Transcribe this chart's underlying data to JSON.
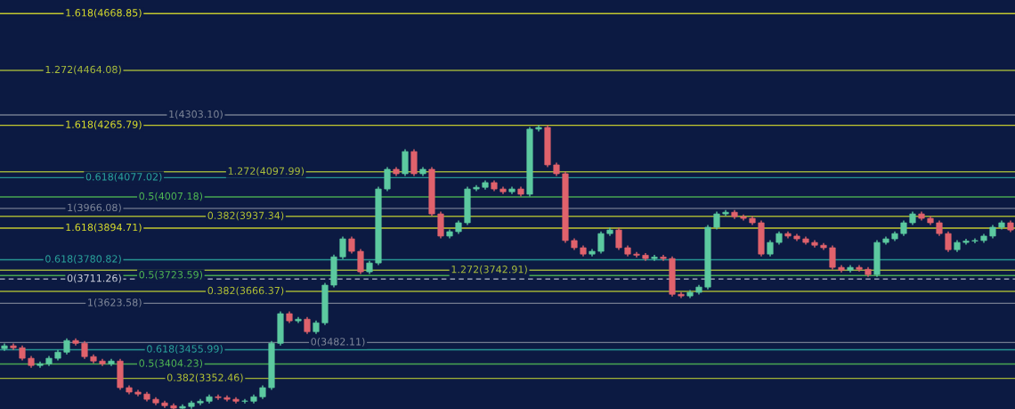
{
  "chart_data": {
    "type": "candlestick",
    "categories": [
      null,
      null,
      null,
      null,
      null,
      null,
      null,
      null,
      null,
      null,
      null,
      null,
      null,
      null,
      null,
      null,
      null,
      null,
      null,
      null,
      null,
      null,
      null,
      null,
      null,
      null,
      null,
      null,
      null,
      null,
      null,
      null,
      null,
      null,
      null,
      null,
      null,
      null,
      null,
      null,
      null,
      null,
      null,
      null,
      null,
      null,
      null,
      null,
      null,
      null,
      null,
      null,
      null,
      null,
      null,
      null,
      null,
      null,
      null,
      null,
      null,
      null,
      null,
      null,
      null,
      null,
      null,
      null,
      null,
      null,
      null,
      null,
      null,
      null,
      null,
      null,
      null,
      null,
      null,
      null,
      null,
      null,
      null,
      null,
      null,
      null,
      null,
      null,
      null,
      null,
      null,
      null,
      null,
      null,
      null,
      null,
      null,
      null,
      null,
      null,
      null,
      null,
      null,
      null,
      null,
      null,
      null,
      null,
      null,
      null,
      null,
      null,
      null,
      null
    ],
    "ohlc": [
      [
        3460,
        3478,
        3452,
        3470
      ],
      [
        3470,
        3478,
        3455,
        3463
      ],
      [
        3463,
        3471,
        3417,
        3425
      ],
      [
        3425,
        3433,
        3391,
        3399
      ],
      [
        3399,
        3413,
        3391,
        3405
      ],
      [
        3405,
        3433,
        3397,
        3425
      ],
      [
        3425,
        3455,
        3417,
        3447
      ],
      [
        3447,
        3497,
        3439,
        3489
      ],
      [
        3489,
        3497,
        3471,
        3479
      ],
      [
        3479,
        3487,
        3423,
        3431
      ],
      [
        3431,
        3439,
        3407,
        3415
      ],
      [
        3415,
        3423,
        3397,
        3405
      ],
      [
        3405,
        3423,
        3397,
        3415
      ],
      [
        3415,
        3423,
        3311,
        3319
      ],
      [
        3319,
        3327,
        3295,
        3303
      ],
      [
        3303,
        3311,
        3288,
        3296
      ],
      [
        3296,
        3304,
        3269,
        3277
      ],
      [
        3277,
        3285,
        3256,
        3264
      ],
      [
        3264,
        3272,
        3246,
        3254
      ],
      [
        3254,
        3262,
        3242,
        3245
      ],
      [
        3245,
        3259,
        3243,
        3251
      ],
      [
        3251,
        3272,
        3243,
        3264
      ],
      [
        3264,
        3278,
        3256,
        3270
      ],
      [
        3270,
        3294,
        3262,
        3286
      ],
      [
        3286,
        3294,
        3275,
        3283
      ],
      [
        3283,
        3291,
        3269,
        3277
      ],
      [
        3277,
        3285,
        3262,
        3270
      ],
      [
        3270,
        3278,
        3262,
        3270
      ],
      [
        3270,
        3294,
        3262,
        3286
      ],
      [
        3286,
        3327,
        3278,
        3319
      ],
      [
        3319,
        3487,
        3311,
        3479
      ],
      [
        3479,
        3594,
        3471,
        3586
      ],
      [
        3586,
        3594,
        3552,
        3560
      ],
      [
        3560,
        3574,
        3552,
        3566
      ],
      [
        3566,
        3574,
        3513,
        3521
      ],
      [
        3521,
        3561,
        3513,
        3553
      ],
      [
        3553,
        3697,
        3545,
        3689
      ],
      [
        3689,
        3799,
        3681,
        3791
      ],
      [
        3791,
        3864,
        3783,
        3856
      ],
      [
        3856,
        3864,
        3803,
        3811
      ],
      [
        3811,
        3819,
        3729,
        3737
      ],
      [
        3737,
        3777,
        3729,
        3769
      ],
      [
        3769,
        4044,
        3761,
        4036
      ],
      [
        4036,
        4115,
        4028,
        4107
      ],
      [
        4107,
        4115,
        4083,
        4091
      ],
      [
        4091,
        4179,
        4083,
        4171
      ],
      [
        4171,
        4179,
        4083,
        4091
      ],
      [
        4091,
        4115,
        4083,
        4107
      ],
      [
        4107,
        4115,
        3938,
        3946
      ],
      [
        3946,
        3954,
        3858,
        3866
      ],
      [
        3866,
        3890,
        3858,
        3882
      ],
      [
        3882,
        3922,
        3874,
        3914
      ],
      [
        3914,
        4044,
        3906,
        4036
      ],
      [
        4036,
        4050,
        4028,
        4042
      ],
      [
        4042,
        4067,
        4034,
        4059
      ],
      [
        4059,
        4067,
        4028,
        4036
      ],
      [
        4036,
        4044,
        4018,
        4026
      ],
      [
        4026,
        4044,
        4018,
        4036
      ],
      [
        4036,
        4044,
        4009,
        4017
      ],
      [
        4017,
        4260,
        4009,
        4252
      ],
      [
        4252,
        4266,
        4244,
        4258
      ],
      [
        4258,
        4266,
        4115,
        4123
      ],
      [
        4123,
        4131,
        4083,
        4091
      ],
      [
        4091,
        4099,
        3842,
        3850
      ],
      [
        3850,
        3858,
        3816,
        3824
      ],
      [
        3824,
        3832,
        3793,
        3801
      ],
      [
        3801,
        3819,
        3793,
        3811
      ],
      [
        3811,
        3883,
        3803,
        3875
      ],
      [
        3875,
        3896,
        3867,
        3888
      ],
      [
        3888,
        3896,
        3816,
        3824
      ],
      [
        3824,
        3832,
        3793,
        3801
      ],
      [
        3801,
        3809,
        3789,
        3797
      ],
      [
        3797,
        3805,
        3777,
        3785
      ],
      [
        3785,
        3798,
        3777,
        3790
      ],
      [
        3790,
        3798,
        3777,
        3785
      ],
      [
        3785,
        3793,
        3648,
        3656
      ],
      [
        3656,
        3664,
        3642,
        3650
      ],
      [
        3650,
        3671,
        3642,
        3663
      ],
      [
        3663,
        3690,
        3655,
        3682
      ],
      [
        3682,
        3906,
        3674,
        3898
      ],
      [
        3898,
        3954,
        3890,
        3946
      ],
      [
        3946,
        3960,
        3938,
        3952
      ],
      [
        3952,
        3960,
        3928,
        3936
      ],
      [
        3936,
        3944,
        3922,
        3930
      ],
      [
        3930,
        3938,
        3906,
        3914
      ],
      [
        3914,
        3922,
        3793,
        3801
      ],
      [
        3801,
        3851,
        3793,
        3843
      ],
      [
        3843,
        3883,
        3835,
        3875
      ],
      [
        3875,
        3883,
        3858,
        3866
      ],
      [
        3866,
        3874,
        3848,
        3856
      ],
      [
        3856,
        3864,
        3835,
        3843
      ],
      [
        3843,
        3851,
        3825,
        3833
      ],
      [
        3833,
        3841,
        3816,
        3824
      ],
      [
        3824,
        3832,
        3745,
        3753
      ],
      [
        3753,
        3761,
        3735,
        3743
      ],
      [
        3743,
        3761,
        3735,
        3753
      ],
      [
        3753,
        3761,
        3738,
        3746
      ],
      [
        3746,
        3754,
        3719,
        3727
      ],
      [
        3727,
        3851,
        3719,
        3843
      ],
      [
        3843,
        3864,
        3835,
        3856
      ],
      [
        3856,
        3883,
        3848,
        3875
      ],
      [
        3875,
        3922,
        3867,
        3914
      ],
      [
        3914,
        3954,
        3906,
        3946
      ],
      [
        3946,
        3954,
        3922,
        3930
      ],
      [
        3930,
        3938,
        3906,
        3914
      ],
      [
        3914,
        3922,
        3867,
        3875
      ],
      [
        3875,
        3883,
        3809,
        3817
      ],
      [
        3817,
        3851,
        3809,
        3843
      ],
      [
        3843,
        3856,
        3835,
        3848
      ],
      [
        3848,
        3858,
        3840,
        3850
      ],
      [
        3850,
        3874,
        3842,
        3866
      ],
      [
        3866,
        3906,
        3858,
        3898
      ],
      [
        3898,
        3922,
        3890,
        3914
      ],
      [
        3914,
        3922,
        3880,
        3888
      ]
    ],
    "colors": [
      "#5cc9a0",
      "#e0626c",
      "#e0626c",
      "#e0626c",
      "#5cc9a0",
      "#5cc9a0",
      "#5cc9a0",
      "#5cc9a0",
      "#e0626c",
      "#e0626c",
      "#e0626c",
      "#e0626c",
      "#5cc9a0",
      "#e0626c",
      "#e0626c",
      "#e0626c",
      "#e0626c",
      "#e0626c",
      "#e0626c",
      "#e0626c",
      "#5cc9a0",
      "#5cc9a0",
      "#5cc9a0",
      "#5cc9a0",
      "#e0626c",
      "#e0626c",
      "#e0626c",
      "#5cc9a0",
      "#5cc9a0",
      "#5cc9a0",
      "#5cc9a0",
      "#5cc9a0",
      "#e0626c",
      "#5cc9a0",
      "#e0626c",
      "#5cc9a0",
      "#5cc9a0",
      "#5cc9a0",
      "#5cc9a0",
      "#e0626c",
      "#e0626c",
      "#5cc9a0",
      "#5cc9a0",
      "#5cc9a0",
      "#e0626c",
      "#5cc9a0",
      "#e0626c",
      "#5cc9a0",
      "#e0626c",
      "#e0626c",
      "#5cc9a0",
      "#5cc9a0",
      "#5cc9a0",
      "#5cc9a0",
      "#5cc9a0",
      "#e0626c",
      "#e0626c",
      "#5cc9a0",
      "#e0626c",
      "#5cc9a0",
      "#5cc9a0",
      "#e0626c",
      "#e0626c",
      "#e0626c",
      "#e0626c",
      "#e0626c",
      "#5cc9a0",
      "#5cc9a0",
      "#5cc9a0",
      "#e0626c",
      "#e0626c",
      "#e0626c",
      "#e0626c",
      "#5cc9a0",
      "#e0626c",
      "#e0626c",
      "#e0626c",
      "#5cc9a0",
      "#5cc9a0",
      "#5cc9a0",
      "#5cc9a0",
      "#5cc9a0",
      "#e0626c",
      "#e0626c",
      "#e0626c",
      "#e0626c",
      "#5cc9a0",
      "#5cc9a0",
      "#e0626c",
      "#e0626c",
      "#e0626c",
      "#e0626c",
      "#e0626c",
      "#e0626c",
      "#e0626c",
      "#5cc9a0",
      "#e0626c",
      "#e0626c",
      "#5cc9a0",
      "#5cc9a0",
      "#5cc9a0",
      "#5cc9a0",
      "#5cc9a0",
      "#e0626c",
      "#e0626c",
      "#e0626c",
      "#e0626c",
      "#5cc9a0",
      "#5cc9a0",
      "#5cc9a0",
      "#5cc9a0",
      "#5cc9a0",
      "#5cc9a0",
      "#e0626c"
    ],
    "ylim": [
      3242,
      4718
    ],
    "tick_labels": false,
    "ref_lines": [
      {
        "axis": "y",
        "value": 3894.71,
        "label": "1.618(3894.71)",
        "color": "#d8dc2c"
      },
      {
        "axis": "y",
        "value": 3742.91,
        "label": "1.272(3742.91)",
        "color": "#a9bd3c"
      },
      {
        "axis": "y",
        "value": 3623.58,
        "label": "1(3623.58)",
        "color": "#7e8698"
      },
      {
        "axis": "y",
        "value": 3455.99,
        "label": "0.618(3455.99)",
        "color": "#2aa39c"
      },
      {
        "axis": "y",
        "value": 3404.23,
        "label": "0.5(3404.23)",
        "color": "#4fb653"
      },
      {
        "axis": "y",
        "value": 3352.46,
        "label": "0.382(3352.46)",
        "color": "#b3c234"
      },
      {
        "axis": "y",
        "value": 4265.79,
        "label": "1.618(4265.79)",
        "color": "#d8dc2c"
      },
      {
        "axis": "y",
        "value": 4097.99,
        "label": "1.272(4097.99)",
        "color": "#a9bd3c"
      },
      {
        "axis": "y",
        "value": 3966.08,
        "label": "1(3966.08)",
        "color": "#7e8698"
      },
      {
        "axis": "y",
        "value": 3780.82,
        "label": "0.618(3780.82)",
        "color": "#2aa39c"
      },
      {
        "axis": "y",
        "value": 3723.59,
        "label": "0.5(3723.59)",
        "color": "#4fb653"
      },
      {
        "axis": "y",
        "value": 3666.37,
        "label": "0.382(3666.37)",
        "color": "#b3c234"
      },
      {
        "axis": "y",
        "value": 3482.11,
        "label": "0(3482.11)",
        "color": "#7e8698"
      },
      {
        "axis": "y",
        "value": 4668.85,
        "label": "1.618(4668.85)",
        "color": "#d8dc2c"
      },
      {
        "axis": "y",
        "value": 4464.08,
        "label": "1.272(4464.08)",
        "color": "#a9bd3c"
      },
      {
        "axis": "y",
        "value": 4303.1,
        "label": "1(4303.10)",
        "color": "#7e8698"
      },
      {
        "axis": "y",
        "value": 4077.02,
        "label": "0.618(4077.02)",
        "color": "#2aa39c"
      },
      {
        "axis": "y",
        "value": 4007.18,
        "label": "0.5(4007.18)",
        "color": "#4fb653"
      },
      {
        "axis": "y",
        "value": 3937.34,
        "label": "0.382(3937.34)",
        "color": "#b3c234"
      },
      {
        "axis": "y",
        "value": 3711.26,
        "label": "0(3711.26)",
        "color": "#c8ccd8",
        "line_style": "dashed"
      }
    ]
  }
}
